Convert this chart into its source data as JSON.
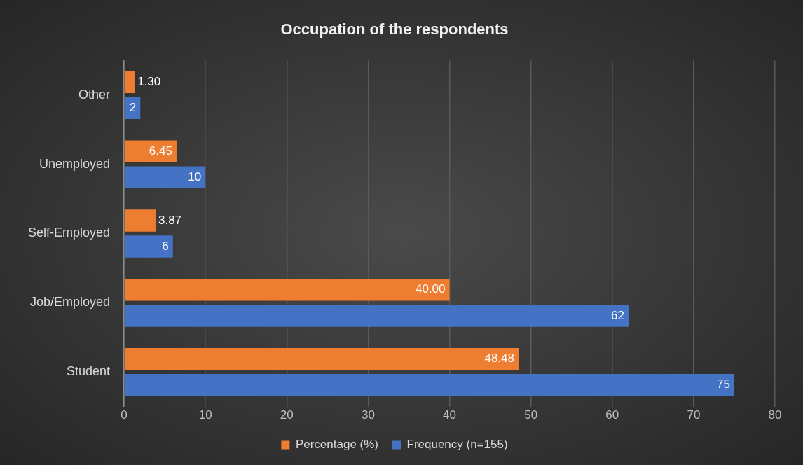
{
  "chart_data": {
    "type": "bar",
    "orientation": "horizontal",
    "title": "Occupation of the respondents",
    "categories": [
      "Other",
      "Unemployed",
      "Self-Employed",
      "Job/Employed",
      "Student"
    ],
    "series": [
      {
        "name": "Percentage (%)",
        "color": "#ed7d31",
        "values": [
          1.3,
          6.45,
          3.87,
          40,
          48.48
        ],
        "value_labels": [
          "1.30",
          "6.45",
          "3.87",
          "40.00",
          "48.48"
        ]
      },
      {
        "name": "Frequency (n=155)",
        "color": "#4472c4",
        "values": [
          2,
          10,
          6,
          62,
          75
        ],
        "value_labels": [
          "2",
          "10",
          "6",
          "62",
          "75"
        ]
      }
    ],
    "xlim": [
      0,
      80
    ],
    "xticks": [
      0,
      10,
      20,
      30,
      40,
      50,
      60,
      70,
      80
    ],
    "grid": "x",
    "legend": "bottom"
  }
}
